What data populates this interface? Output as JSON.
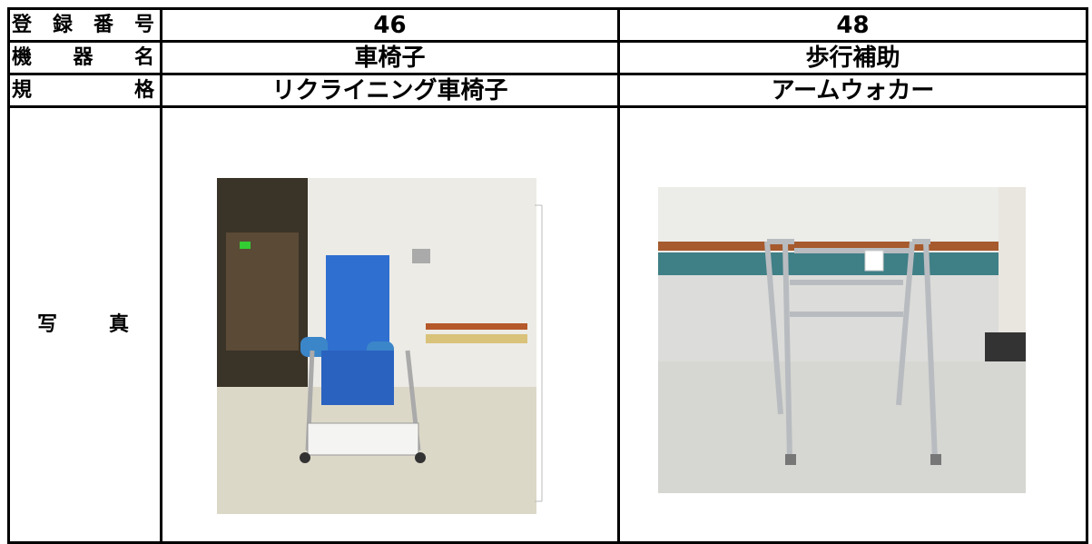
{
  "table": {
    "rows": [
      [
        "登録番号",
        46,
        48
      ],
      [
        "機器名",
        "車椅子",
        "歩行補助"
      ],
      [
        "規格",
        "リクライニング車椅子",
        "アームウォカー"
      ]
    ],
    "photo_row": {
      "label": "写真"
    }
  }
}
